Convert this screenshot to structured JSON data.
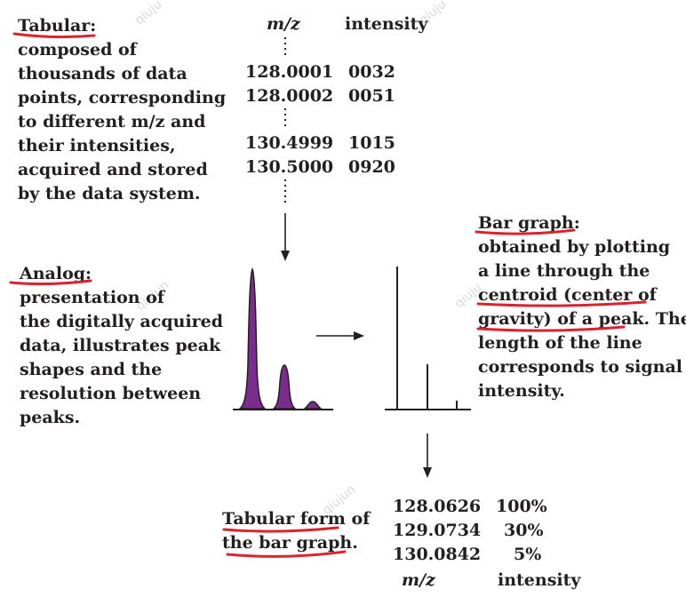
{
  "tabular": {
    "heading": "Tabular:",
    "lines": [
      "composed of",
      "thousands of data",
      "points, corresponding",
      "to different m/z and",
      "their intensities,",
      "acquired and stored",
      "by the data system."
    ]
  },
  "top_table": {
    "header_mz": "m/z",
    "header_intensity": "intensity",
    "rows": [
      {
        "mz": "128.0001",
        "intensity": "0032"
      },
      {
        "mz": "128.0002",
        "intensity": "0051"
      },
      {
        "mz": "130.4999",
        "intensity": "1015"
      },
      {
        "mz": "130.5000",
        "intensity": "0920"
      }
    ]
  },
  "analog": {
    "heading": "Analog:",
    "lines": [
      "presentation of",
      "the digitally acquired",
      "data, illustrates peak",
      "shapes and the",
      "resolution between",
      "peaks."
    ]
  },
  "bar_graph": {
    "heading": "Bar graph:",
    "lines": [
      "obtained by plotting",
      "a line through the",
      "centroid (center of",
      "gravity) of a peak. The",
      "length of the line",
      "corresponds to signal",
      "intensity."
    ]
  },
  "tabular_form": {
    "lines": [
      "Tabular form of",
      "the bar graph."
    ]
  },
  "bottom_table": {
    "rows": [
      {
        "mz": "128.0626",
        "intensity": "100%"
      },
      {
        "mz": "129.0734",
        "intensity": "30%"
      },
      {
        "mz": "130.0842",
        "intensity": "5%"
      }
    ],
    "footer_mz": "m/z",
    "footer_intensity": "intensity"
  },
  "watermarks": [
    "qiuju",
    "qiuju",
    "qiujun",
    "qiuju",
    "qiujun"
  ],
  "colors": {
    "text": "#231f20",
    "underline": "#d9232e",
    "peak_fill": "#7b2d8e"
  }
}
